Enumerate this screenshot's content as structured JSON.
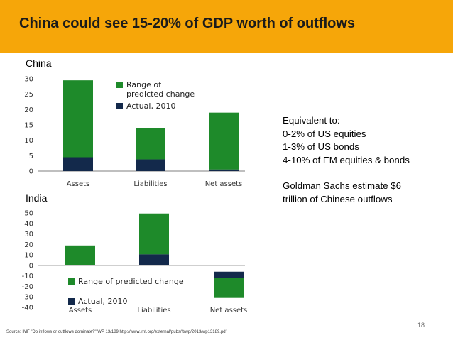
{
  "slide": {
    "title": "China could see 15-20% of GDP worth of outflows",
    "page_number": "18",
    "source": "Source: IMF \"Do inflows or outflows dominate?\" WP 13/189 http://www.imf.org/external/pubs/ft/wp/2013/wp13189.pdf",
    "notes": {
      "heading": "Equivalent to:",
      "lines": [
        "0-2% of US equities",
        "1-3% of US bonds",
        "4-10% of EM equities & bonds"
      ],
      "extra_1": "Goldman Sachs estimate $6",
      "extra_2": "trillion of Chinese outflows"
    }
  },
  "colors": {
    "title_bar": "#F6A609",
    "range": "#1E8A2A",
    "actual": "#13294B"
  },
  "chart_data": [
    {
      "type": "bar",
      "title": "China",
      "categories": [
        "Assets",
        "Liabilities",
        "Net assets"
      ],
      "yticks": [
        "0",
        "5",
        "10",
        "15",
        "20",
        "25",
        "30"
      ],
      "ylim": [
        0,
        30
      ],
      "series": [
        {
          "name": "Range of predicted change",
          "ranges": [
            [
              4.5,
              29.5
            ],
            [
              3.8,
              14
            ],
            [
              0.5,
              19
            ]
          ]
        },
        {
          "name": "Actual, 2010",
          "ranges": [
            [
              0,
              4.5
            ],
            [
              0,
              3.8
            ],
            [
              0,
              0.5
            ]
          ]
        }
      ],
      "legend_position": "top-right"
    },
    {
      "type": "bar",
      "title": "India",
      "categories": [
        "Assets",
        "Liabilities",
        "Net assets"
      ],
      "yticks": [
        "50",
        "40",
        "30",
        "20",
        "10",
        "0",
        "-10",
        "-20",
        "-30",
        "-40"
      ],
      "ylim": [
        -40,
        50
      ],
      "series": [
        {
          "name": "Range of predicted change",
          "ranges": [
            [
              0,
              19
            ],
            [
              10.5,
              49.5
            ],
            [
              -12,
              -31
            ]
          ]
        },
        {
          "name": "Actual, 2010",
          "ranges": [
            [
              0,
              0
            ],
            [
              0,
              10.5
            ],
            [
              -6,
              -12
            ]
          ]
        }
      ],
      "legend_position": "bottom-left"
    }
  ]
}
